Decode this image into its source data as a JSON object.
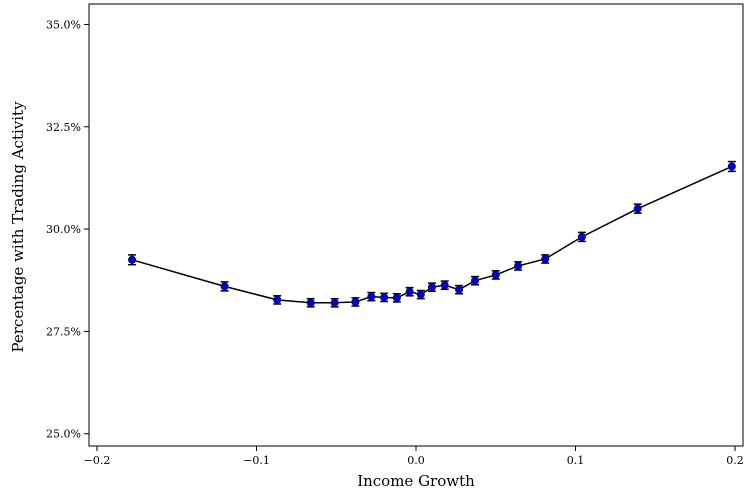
{
  "chart_data": {
    "type": "line",
    "title": "",
    "xlabel": "Income Growth",
    "ylabel": "Percentage with Trading Activity",
    "xlim": [
      -0.205,
      0.205
    ],
    "ylim": [
      24.7,
      35.5
    ],
    "x_ticks": [
      -0.2,
      -0.1,
      0.0,
      0.1,
      0.2
    ],
    "x_tick_labels": [
      "−0.2",
      "−0.1",
      "0.0",
      "0.1",
      "0.2"
    ],
    "y_ticks": [
      25.0,
      27.5,
      30.0,
      32.5,
      35.0
    ],
    "y_tick_labels": [
      "25.0%",
      "27.5%",
      "30.0%",
      "32.5%",
      "35.0%"
    ],
    "grid": false,
    "legend": "none",
    "colors": {
      "line": "#000000",
      "marker": "#0000cc",
      "errorbar": "#000000"
    },
    "series": [
      {
        "x": [
          -0.178,
          -0.12,
          -0.087,
          -0.066,
          -0.051,
          -0.038,
          -0.028,
          -0.02,
          -0.012,
          -0.004,
          0.003,
          0.01,
          0.018,
          0.027,
          0.037,
          0.05,
          0.064,
          0.081,
          0.104,
          0.139,
          0.198
        ],
        "y": [
          29.25,
          28.6,
          28.27,
          28.2,
          28.2,
          28.22,
          28.35,
          28.33,
          28.32,
          28.47,
          28.4,
          28.58,
          28.63,
          28.52,
          28.74,
          28.88,
          29.1,
          29.27,
          29.81,
          30.5,
          31.53
        ],
        "yerr": [
          0.12,
          0.11,
          0.1,
          0.1,
          0.1,
          0.1,
          0.1,
          0.1,
          0.1,
          0.1,
          0.1,
          0.1,
          0.1,
          0.1,
          0.1,
          0.1,
          0.1,
          0.1,
          0.11,
          0.11,
          0.12
        ]
      }
    ]
  }
}
